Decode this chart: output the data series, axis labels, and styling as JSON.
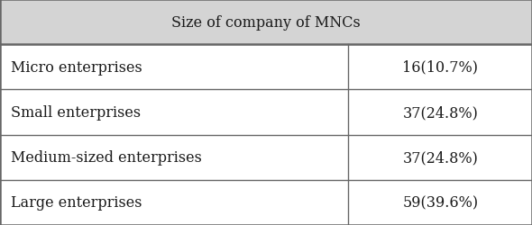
{
  "title": "Size of company of MNCs",
  "rows": [
    [
      "Micro enterprises",
      "16(10.7%)"
    ],
    [
      "Small enterprises",
      "37(24.8%)"
    ],
    [
      "Medium-sized enterprises",
      "37(24.8%)"
    ],
    [
      "Large enterprises",
      "59(39.6%)"
    ]
  ],
  "header_bg": "#d4d4d4",
  "row_bg": "#ffffff",
  "border_color": "#666666",
  "text_color": "#1a1a1a",
  "title_fontsize": 11.5,
  "cell_fontsize": 11.5,
  "col_split": 0.655,
  "fig_width": 5.9,
  "fig_height": 2.51,
  "dpi": 100
}
